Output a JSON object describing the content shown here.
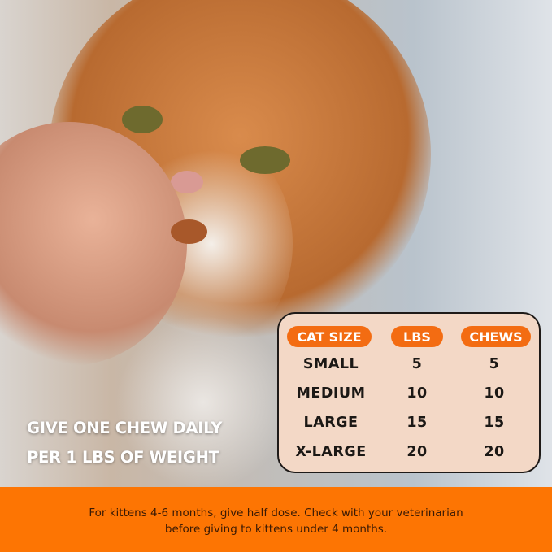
{
  "headline": [
    "GIVE ONE CHEW DAILY",
    "PER 1 LBS OF WEIGHT"
  ],
  "table": {
    "headers": [
      "CAT SIZE",
      "LBS",
      "CHEWS"
    ],
    "rows": [
      [
        "SMALL",
        "5",
        "5"
      ],
      [
        "MEDIUM",
        "10",
        "10"
      ],
      [
        "LARGE",
        "15",
        "15"
      ],
      [
        "X-LARGE",
        "20",
        "20"
      ]
    ]
  },
  "banner": {
    "line1": "For kittens 4-6 months, give half dose. Check with your veterinarian",
    "line2": "before giving to kittens under 4 months."
  },
  "colors": {
    "accent": "#fd7503",
    "table_bg": "#f3d8c6",
    "header_pill": "#f36c12"
  }
}
